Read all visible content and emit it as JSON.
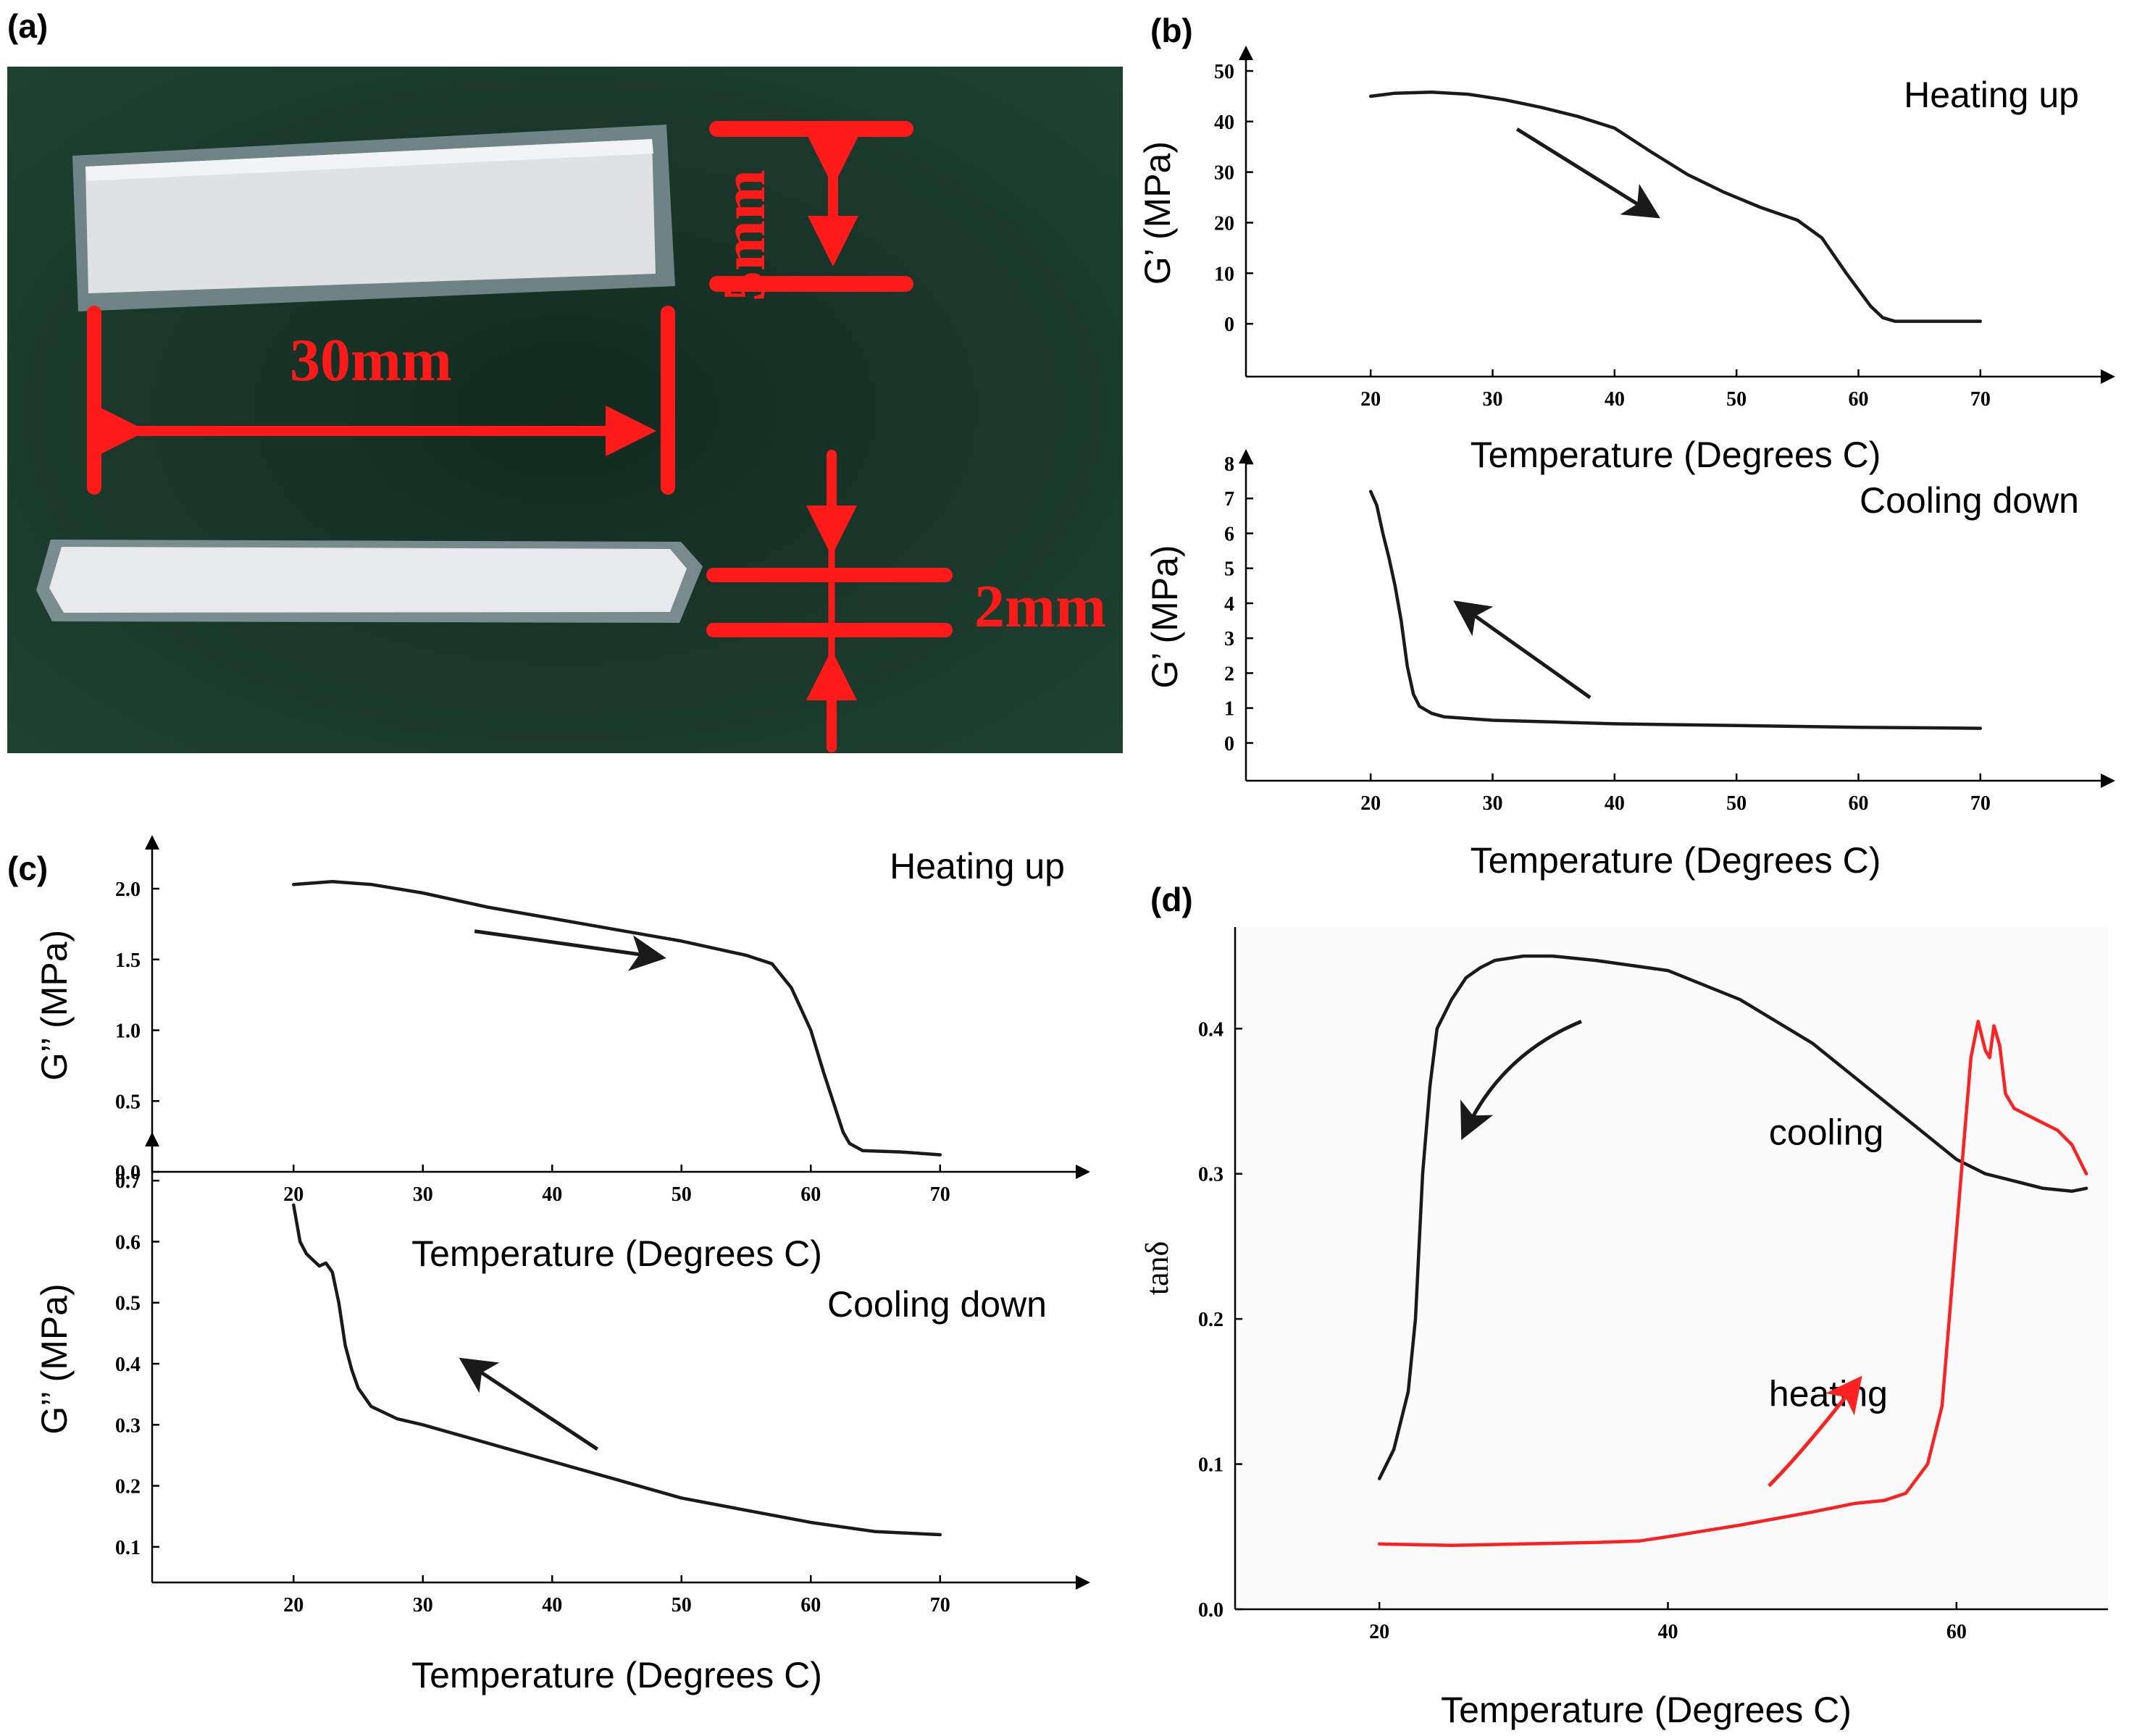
{
  "colors": {
    "black": "#1a1a1a",
    "red": "#ff2020",
    "photo_bg": "#1c3a2c",
    "dimension": "#ff1a1a"
  },
  "panel_a": {
    "label": "(a)",
    "dim_length": "30mm",
    "dim_width": "5mm",
    "dim_thickness": "2mm"
  },
  "chart_data": [
    {
      "id": "b_top",
      "panel_label": "(b)",
      "type": "line",
      "annotation": "Heating up",
      "xlabel": "Temperature (Degrees C)",
      "ylabel": "G’ (MPa)",
      "xlim": [
        15,
        75
      ],
      "ylim": [
        -5,
        50
      ],
      "xticks": [
        20,
        30,
        40,
        50,
        60,
        70
      ],
      "yticks": [
        0,
        10,
        20,
        30,
        40,
        50
      ],
      "arrow": {
        "from": [
          32,
          38.5
        ],
        "to": [
          43,
          22
        ]
      },
      "series": [
        {
          "color": "#1a1a1a",
          "x": [
            20,
            22,
            25,
            28,
            31,
            34,
            37,
            40,
            43,
            46,
            49,
            52,
            55,
            57,
            59,
            61,
            62,
            63,
            65,
            70
          ],
          "y": [
            45,
            45.6,
            45.8,
            45.4,
            44.3,
            42.8,
            41,
            38.7,
            34,
            29.5,
            26,
            23,
            20.5,
            17,
            10,
            3.5,
            1.2,
            0.5,
            0.5,
            0.5
          ]
        }
      ]
    },
    {
      "id": "b_bottom",
      "type": "line",
      "annotation": "Cooling down",
      "xlabel": "Temperature (Degrees C)",
      "ylabel": "G’ (MPa)",
      "xlim": [
        15,
        75
      ],
      "ylim": [
        -0.5,
        8
      ],
      "xticks": [
        20,
        30,
        40,
        50,
        60,
        70
      ],
      "yticks": [
        0,
        1,
        2,
        3,
        4,
        5,
        6,
        7,
        8
      ],
      "arrow": {
        "from": [
          38,
          1.3
        ],
        "to": [
          27.5,
          3.9
        ]
      },
      "series": [
        {
          "color": "#1a1a1a",
          "x": [
            20,
            20.5,
            21,
            21.5,
            22,
            22.5,
            23,
            23.5,
            24,
            25,
            26,
            28,
            30,
            35,
            40,
            50,
            60,
            70
          ],
          "y": [
            7.2,
            6.8,
            6.0,
            5.3,
            4.5,
            3.5,
            2.2,
            1.4,
            1.05,
            0.85,
            0.75,
            0.7,
            0.65,
            0.6,
            0.55,
            0.5,
            0.45,
            0.42
          ]
        }
      ]
    },
    {
      "id": "c_top",
      "panel_label": "(c)",
      "type": "line",
      "annotation": "Heating up",
      "xlabel": "Temperature (Degrees C)",
      "ylabel": "G’’ (MPa)",
      "xlim": [
        15,
        75
      ],
      "ylim": [
        0,
        2.2
      ],
      "xticks": [
        20,
        30,
        40,
        50,
        60,
        70
      ],
      "yticks": [
        "0.0",
        "0.5",
        "1.0",
        "1.5",
        "2.0"
      ],
      "ytick_values": [
        0,
        0.5,
        1.0,
        1.5,
        2.0
      ],
      "arrow": {
        "from": [
          34,
          1.7
        ],
        "to": [
          48,
          1.52
        ]
      },
      "series": [
        {
          "color": "#1a1a1a",
          "x": [
            20,
            23,
            26,
            30,
            35,
            40,
            45,
            50,
            55,
            57,
            58.5,
            60,
            61,
            62,
            62.5,
            63,
            64,
            67,
            70
          ],
          "y": [
            2.03,
            2.05,
            2.03,
            1.97,
            1.87,
            1.79,
            1.71,
            1.63,
            1.53,
            1.47,
            1.3,
            1.0,
            0.7,
            0.42,
            0.28,
            0.2,
            0.15,
            0.14,
            0.12
          ]
        }
      ]
    },
    {
      "id": "c_bottom",
      "type": "line",
      "annotation": "Cooling down",
      "xlabel": "Temperature (Degrees C)",
      "ylabel": "G’’ (MPa)",
      "xlim": [
        15,
        75
      ],
      "ylim": [
        0.05,
        0.75
      ],
      "xticks": [
        20,
        30,
        40,
        50,
        60,
        70
      ],
      "yticks": [
        "0.1",
        "0.2",
        "0.3",
        "0.4",
        "0.5",
        "0.6",
        "0.7"
      ],
      "ytick_values": [
        0.1,
        0.2,
        0.3,
        0.4,
        0.5,
        0.6,
        0.7
      ],
      "arrow": {
        "from": [
          43.5,
          0.26
        ],
        "to": [
          33.5,
          0.4
        ]
      },
      "series": [
        {
          "color": "#1a1a1a",
          "x": [
            20,
            20.5,
            21,
            21.5,
            22,
            22.5,
            23,
            23.5,
            24,
            24.5,
            25,
            26,
            28,
            30,
            35,
            40,
            45,
            50,
            55,
            60,
            65,
            70
          ],
          "y": [
            0.66,
            0.6,
            0.58,
            0.57,
            0.56,
            0.565,
            0.55,
            0.5,
            0.43,
            0.39,
            0.36,
            0.33,
            0.31,
            0.3,
            0.27,
            0.24,
            0.21,
            0.18,
            0.16,
            0.14,
            0.125,
            0.12
          ]
        }
      ]
    },
    {
      "id": "d",
      "panel_label": "(d)",
      "type": "line",
      "xlabel": "Temperature (Degrees C)",
      "ylabel": "tanδ",
      "xlim": [
        10,
        70
      ],
      "ylim": [
        0,
        0.47
      ],
      "xticks": [
        20,
        40,
        60
      ],
      "yticks": [
        "0.0",
        "0.1",
        "0.2",
        "0.3",
        "0.4"
      ],
      "ytick_values": [
        0,
        0.1,
        0.2,
        0.3,
        0.4
      ],
      "annotations": [
        {
          "text": "cooling",
          "x": 47,
          "y": 0.32
        },
        {
          "text": "heating",
          "x": 47,
          "y": 0.14
        }
      ],
      "arrows": [
        {
          "color": "#1a1a1a",
          "from": [
            34,
            0.405
          ],
          "to": [
            26,
            0.33
          ],
          "curved": true
        },
        {
          "color": "#ff2020",
          "from": [
            47,
            0.085
          ],
          "to": [
            53,
            0.155
          ],
          "curved": true
        }
      ],
      "series": [
        {
          "name": "cooling",
          "color": "#1a1a1a",
          "x": [
            20,
            21,
            22,
            22.5,
            23,
            23.5,
            24,
            25,
            26,
            27,
            28,
            30,
            32,
            35,
            40,
            45,
            50,
            55,
            60,
            62,
            64,
            66,
            68,
            69
          ],
          "y": [
            0.09,
            0.11,
            0.15,
            0.2,
            0.3,
            0.36,
            0.4,
            0.42,
            0.435,
            0.442,
            0.447,
            0.45,
            0.45,
            0.447,
            0.44,
            0.42,
            0.39,
            0.35,
            0.31,
            0.3,
            0.295,
            0.29,
            0.288,
            0.29
          ]
        },
        {
          "name": "heating",
          "color": "#ff2020",
          "x": [
            20,
            25,
            30,
            35,
            38,
            40,
            45,
            50,
            53,
            55,
            56.5,
            58,
            59,
            59.5,
            60,
            60.5,
            61,
            61.5,
            62,
            62.3,
            62.6,
            63,
            63.4,
            64,
            65,
            66,
            67,
            68,
            69
          ],
          "y": [
            0.045,
            0.044,
            0.045,
            0.046,
            0.047,
            0.05,
            0.058,
            0.067,
            0.073,
            0.075,
            0.08,
            0.1,
            0.14,
            0.2,
            0.26,
            0.32,
            0.38,
            0.405,
            0.385,
            0.38,
            0.402,
            0.388,
            0.355,
            0.345,
            0.34,
            0.335,
            0.33,
            0.32,
            0.3
          ]
        }
      ]
    }
  ]
}
